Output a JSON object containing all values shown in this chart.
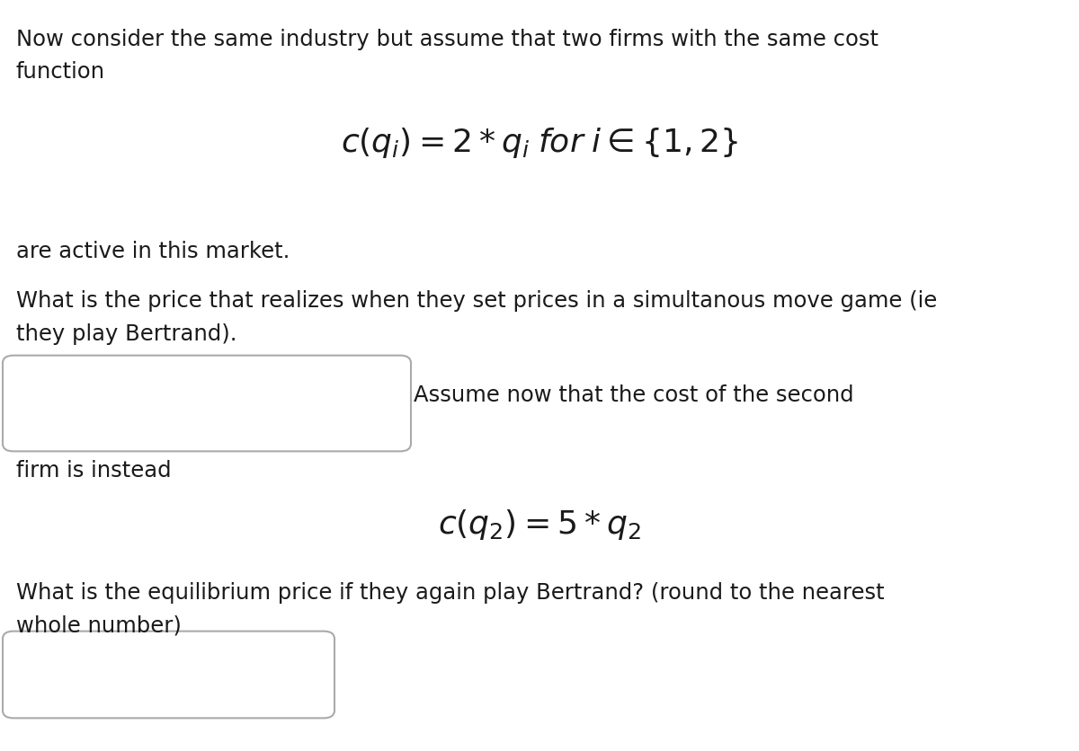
{
  "background_color": "#ffffff",
  "text_color": "#1a1a1a",
  "figsize": [
    12.0,
    8.37
  ],
  "dpi": 100,
  "line1": "Now consider the same industry but assume that two firms with the same cost",
  "line2": "function",
  "formula1": "$c(q_i) = 2 * q_i \\; for \\; i \\in \\{1, 2\\}$",
  "line3": "are active in this market.",
  "line4": "What is the price that realizes when they set prices in a simultanous move game (ie",
  "line5": "they play Bertrand).",
  "aside_text": "Assume now that the cost of the second",
  "line6": "firm is instead",
  "formula2": "$c(q_2) = 5 * q_2$",
  "line7": "What is the equilibrium price if they again play Bertrand? (round to the nearest",
  "line8": "whole number)",
  "font_size_text": 17.5,
  "font_size_formula": 26
}
